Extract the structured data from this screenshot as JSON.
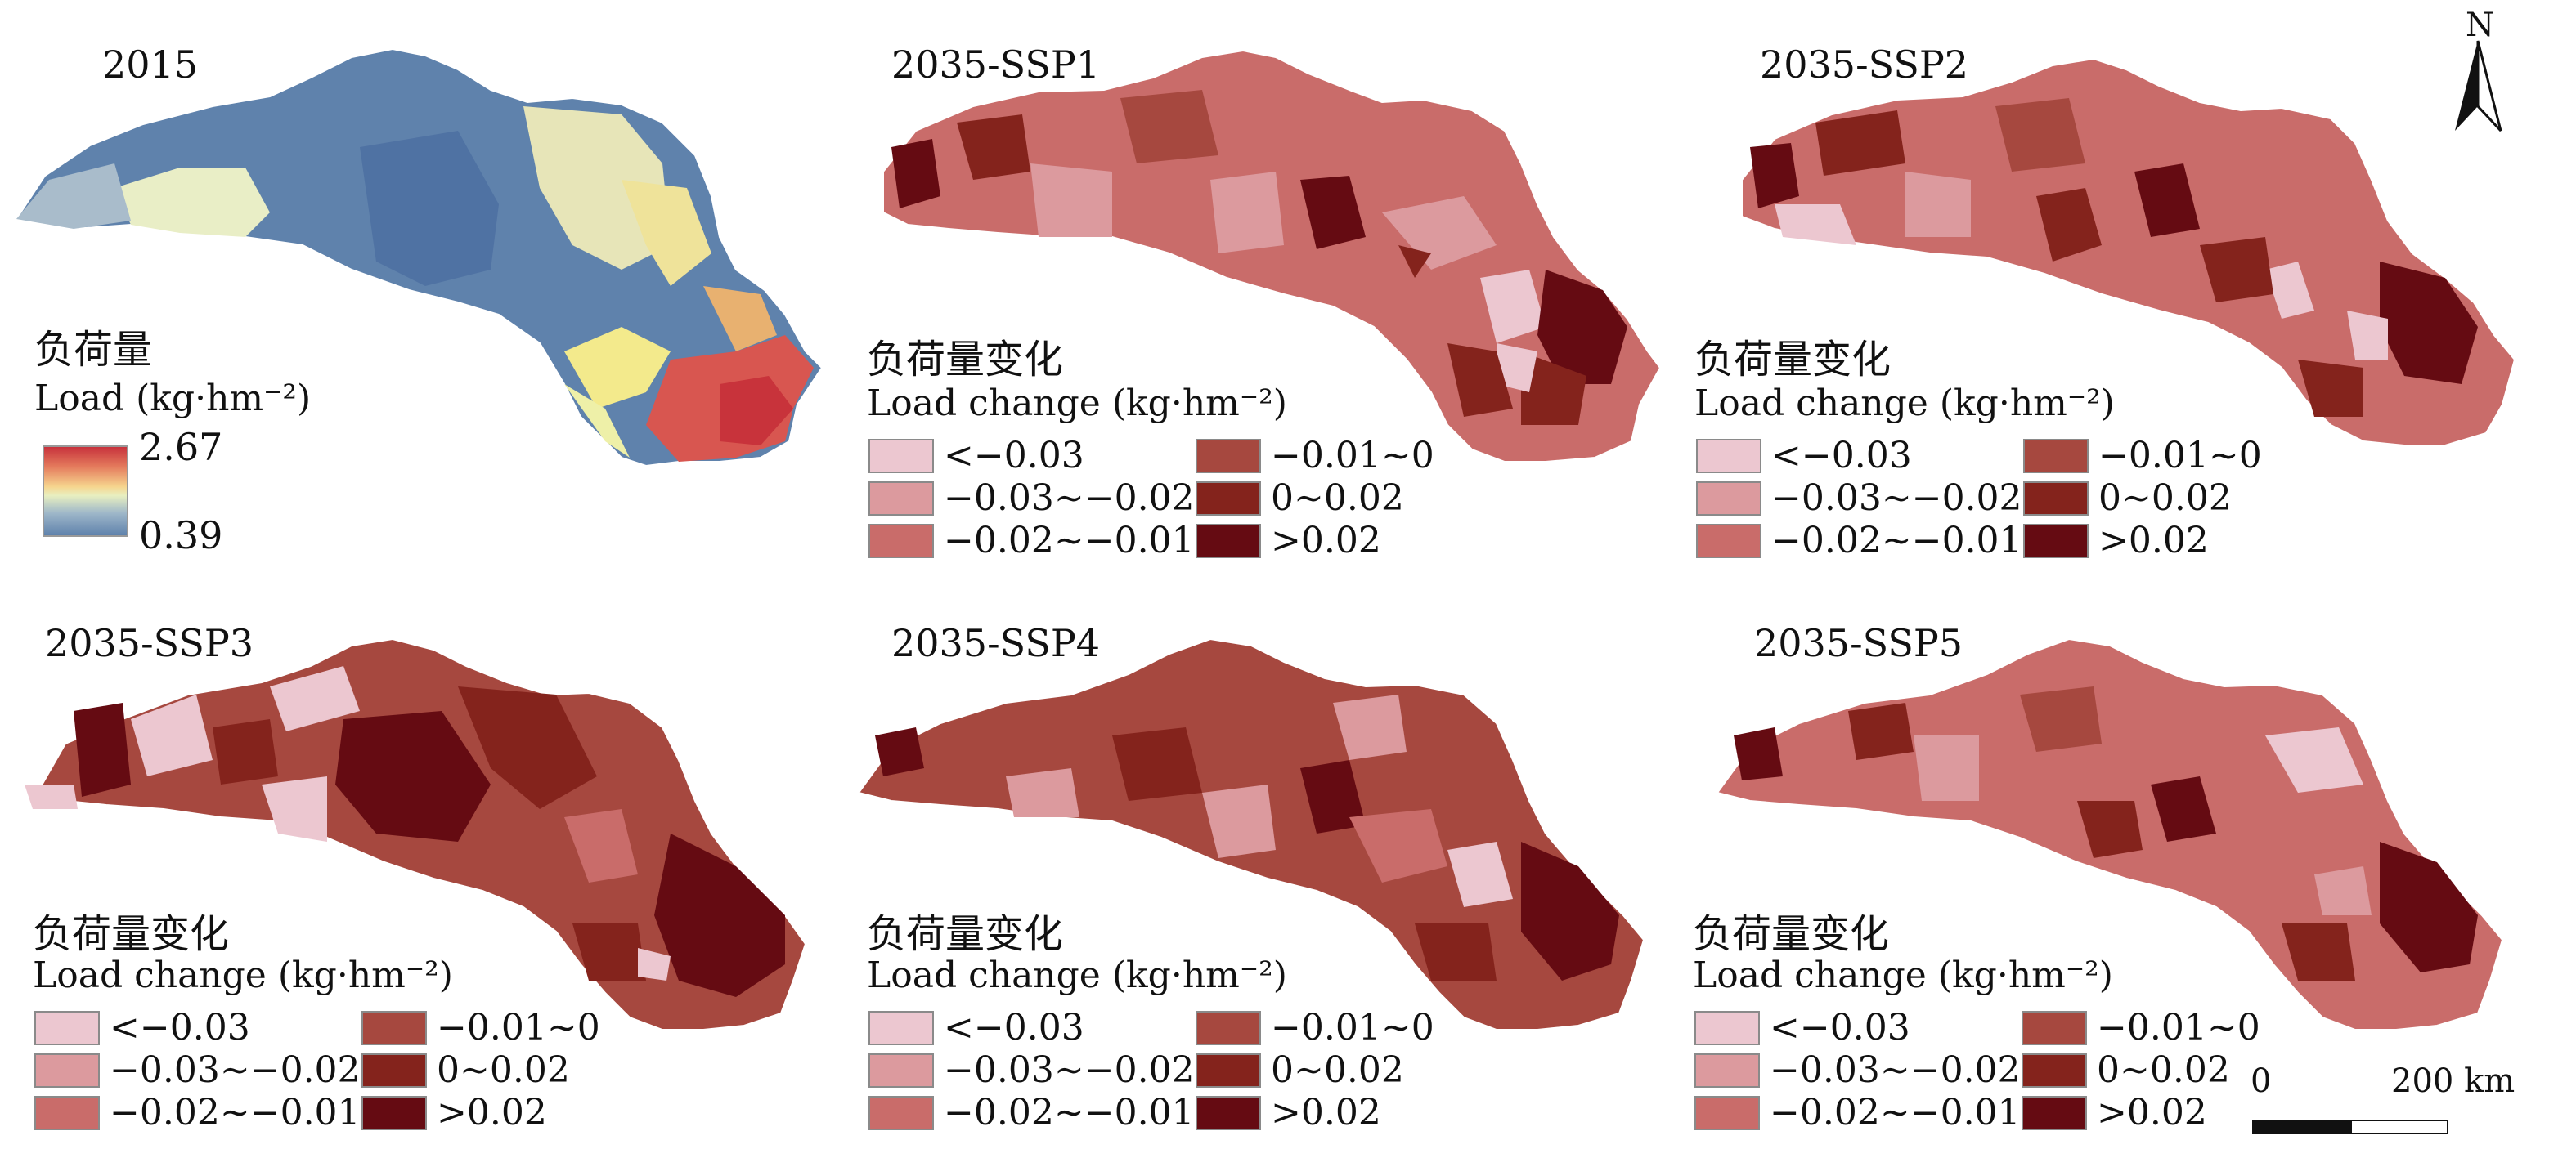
{
  "colors": {
    "c1": "#ecc7d0",
    "c2": "#dc9a9e",
    "c3": "#c96c6a",
    "c4": "#a6483f",
    "c5": "#84231c",
    "c6": "#650b12"
  },
  "baseline": {
    "title": "2015",
    "legend_cn": "负荷量",
    "legend_en": "Load (kg·hm⁻²)",
    "max": "2.67",
    "min": "0.39"
  },
  "legend_change": {
    "cn": "负荷量变化",
    "en": "Load change (kg·hm⁻²)",
    "items": [
      "<−0.03",
      "−0.03~−0.02",
      "−0.02~−0.01",
      "−0.01~0",
      "0~0.02",
      ">0.02"
    ]
  },
  "panels": [
    {
      "title": "2035-SSP1"
    },
    {
      "title": "2035-SSP2"
    },
    {
      "title": "2035-SSP3"
    },
    {
      "title": "2035-SSP4"
    },
    {
      "title": "2035-SSP5"
    }
  ],
  "north": "N",
  "scale": {
    "start": "0",
    "end": "200 km"
  }
}
